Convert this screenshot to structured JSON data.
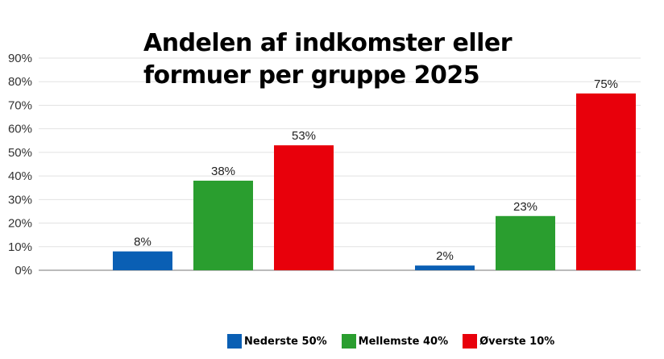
{
  "chart_data": {
    "type": "bar",
    "title": "Andelen af indkomster eller formuer per gruppe 2025",
    "title_lines": [
      "Andelen af indkomster eller",
      "formuer per gruppe 2025"
    ],
    "categories": [
      "",
      ""
    ],
    "series": [
      {
        "name": "Nederste 50%",
        "color": "#0a5fb4",
        "values": [
          8,
          2
        ]
      },
      {
        "name": "Mellemste 40%",
        "color": "#2a9e2f",
        "values": [
          38,
          23
        ]
      },
      {
        "name": "Øverste 10%",
        "color": "#e8000b",
        "values": [
          53,
          75
        ]
      }
    ],
    "ylim": [
      0,
      90
    ],
    "yticks": [
      "0%",
      "10%",
      "20%",
      "30%",
      "40%",
      "50%",
      "60%",
      "70%",
      "80%",
      "90%"
    ],
    "xlabel": "",
    "ylabel": "",
    "grid": true,
    "legend": "bottom"
  }
}
